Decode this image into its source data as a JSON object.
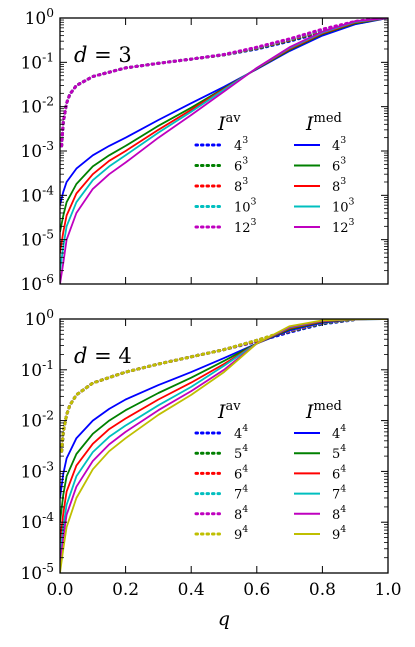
{
  "chart_data": [
    {
      "type": "line",
      "panel_label": "d = 3",
      "xlabel": "",
      "ylabel": "",
      "xlim": [
        0.0,
        1.0
      ],
      "ylim": [
        1e-06,
        1
      ],
      "yscale": "log",
      "xticks": [
        0.0,
        0.2,
        0.4,
        0.6,
        0.8,
        1.0
      ],
      "yticks": [
        "10^-6",
        "10^-5",
        "10^-4",
        "10^-3",
        "10^-2",
        "10^-1",
        "10^0"
      ],
      "grid": false,
      "legend_placement": "center-right",
      "legend_headers": {
        "av": "I^av",
        "med": "I^med"
      },
      "series": [
        {
          "name": "4^3",
          "kind": "av",
          "color": "#0000ff",
          "x": [
            0.005,
            0.01,
            0.02,
            0.03,
            0.05,
            0.1,
            0.2,
            0.3,
            0.4,
            0.5,
            0.6,
            0.7,
            0.8,
            0.9,
            0.95
          ],
          "values": [
            0.0013,
            0.0045,
            0.012,
            0.019,
            0.03,
            0.048,
            0.075,
            0.095,
            0.118,
            0.147,
            0.2,
            0.3,
            0.48,
            0.75,
            0.88
          ]
        },
        {
          "name": "6^3",
          "kind": "av",
          "color": "#008000",
          "x": [
            0.005,
            0.01,
            0.02,
            0.03,
            0.05,
            0.1,
            0.2,
            0.3,
            0.4,
            0.5,
            0.6,
            0.7,
            0.8,
            0.9,
            0.95
          ],
          "values": [
            0.0013,
            0.0045,
            0.012,
            0.019,
            0.03,
            0.048,
            0.075,
            0.095,
            0.118,
            0.148,
            0.205,
            0.31,
            0.5,
            0.78,
            0.9
          ]
        },
        {
          "name": "8^3",
          "kind": "av",
          "color": "#ff0000",
          "x": [
            0.005,
            0.01,
            0.02,
            0.03,
            0.05,
            0.1,
            0.2,
            0.3,
            0.4,
            0.5,
            0.6,
            0.7,
            0.8,
            0.9,
            0.95
          ],
          "values": [
            0.0013,
            0.0045,
            0.012,
            0.019,
            0.03,
            0.048,
            0.075,
            0.095,
            0.118,
            0.149,
            0.21,
            0.32,
            0.52,
            0.8,
            0.92
          ]
        },
        {
          "name": "10^3",
          "kind": "av",
          "color": "#00bfbf",
          "x": [
            0.005,
            0.01,
            0.02,
            0.03,
            0.05,
            0.1,
            0.2,
            0.3,
            0.4,
            0.5,
            0.6,
            0.7,
            0.8,
            0.9,
            0.95
          ],
          "values": [
            0.0013,
            0.0045,
            0.012,
            0.019,
            0.03,
            0.048,
            0.075,
            0.095,
            0.118,
            0.15,
            0.215,
            0.33,
            0.54,
            0.82,
            0.93
          ]
        },
        {
          "name": "12^3",
          "kind": "av",
          "color": "#bf00bf",
          "x": [
            0.005,
            0.01,
            0.02,
            0.03,
            0.05,
            0.1,
            0.2,
            0.3,
            0.4,
            0.5,
            0.6,
            0.7,
            0.8,
            0.9,
            0.95
          ],
          "values": [
            0.0013,
            0.0045,
            0.012,
            0.019,
            0.03,
            0.048,
            0.075,
            0.095,
            0.118,
            0.15,
            0.22,
            0.34,
            0.56,
            0.84,
            0.94
          ]
        },
        {
          "name": "4^3",
          "kind": "med",
          "color": "#0000ff",
          "x": [
            0.0,
            0.01,
            0.02,
            0.05,
            0.1,
            0.15,
            0.2,
            0.3,
            0.4,
            0.5,
            0.6,
            0.7,
            0.8,
            0.9,
            1.0
          ],
          "values": [
            6e-05,
            0.00012,
            0.0002,
            0.0004,
            0.0008,
            0.0013,
            0.002,
            0.005,
            0.012,
            0.028,
            0.07,
            0.18,
            0.4,
            0.72,
            1.0
          ]
        },
        {
          "name": "6^3",
          "kind": "med",
          "color": "#008000",
          "x": [
            0.0,
            0.01,
            0.02,
            0.05,
            0.1,
            0.15,
            0.2,
            0.3,
            0.4,
            0.5,
            0.6,
            0.7,
            0.8,
            0.9,
            1.0
          ],
          "values": [
            1.5e-05,
            3.5e-05,
            7e-05,
            0.00018,
            0.00045,
            0.0008,
            0.0013,
            0.0037,
            0.0095,
            0.026,
            0.072,
            0.19,
            0.43,
            0.76,
            1.0
          ]
        },
        {
          "name": "8^3",
          "kind": "med",
          "color": "#ff0000",
          "x": [
            0.0,
            0.01,
            0.02,
            0.05,
            0.1,
            0.15,
            0.2,
            0.3,
            0.4,
            0.5,
            0.6,
            0.7,
            0.8,
            0.9,
            1.0
          ],
          "values": [
            5e-06,
            1.5e-05,
            3.5e-05,
            0.00011,
            0.0003,
            0.0006,
            0.001,
            0.003,
            0.0085,
            0.025,
            0.073,
            0.2,
            0.45,
            0.79,
            1.0
          ]
        },
        {
          "name": "10^3",
          "kind": "med",
          "color": "#00bfbf",
          "x": [
            0.0,
            0.01,
            0.02,
            0.05,
            0.1,
            0.15,
            0.2,
            0.3,
            0.4,
            0.5,
            0.6,
            0.7,
            0.8,
            0.9,
            1.0
          ],
          "values": [
            2e-06,
            7e-06,
            2e-05,
            7e-05,
            0.00022,
            0.00045,
            0.0008,
            0.0026,
            0.0077,
            0.024,
            0.074,
            0.21,
            0.47,
            0.82,
            1.0
          ]
        },
        {
          "name": "12^3",
          "kind": "med",
          "color": "#bf00bf",
          "x": [
            0.0,
            0.01,
            0.02,
            0.05,
            0.1,
            0.15,
            0.2,
            0.3,
            0.4,
            0.5,
            0.6,
            0.7,
            0.8,
            0.9,
            1.0
          ],
          "values": [
            1e-06,
            3e-06,
            1e-05,
            4e-05,
            0.00014,
            0.0003,
            0.00055,
            0.002,
            0.0065,
            0.022,
            0.075,
            0.22,
            0.49,
            0.85,
            1.0
          ]
        }
      ]
    },
    {
      "type": "line",
      "panel_label": "d = 4",
      "xlabel": "q",
      "ylabel": "",
      "xlim": [
        0.0,
        1.0
      ],
      "ylim": [
        1e-05,
        1
      ],
      "yscale": "log",
      "xticks": [
        0.0,
        0.2,
        0.4,
        0.6,
        0.8,
        1.0
      ],
      "yticks": [
        "10^-5",
        "10^-4",
        "10^-3",
        "10^-2",
        "10^-1",
        "10^0"
      ],
      "grid": false,
      "legend_placement": "center-right",
      "legend_headers": {
        "av": "I^av",
        "med": "I^med"
      },
      "series": [
        {
          "name": "4^4",
          "kind": "av",
          "color": "#0000ff",
          "x": [
            0.005,
            0.01,
            0.02,
            0.03,
            0.05,
            0.1,
            0.2,
            0.3,
            0.4,
            0.5,
            0.6,
            0.7,
            0.8,
            0.9
          ],
          "values": [
            0.0025,
            0.006,
            0.013,
            0.02,
            0.032,
            0.055,
            0.09,
            0.13,
            0.18,
            0.25,
            0.36,
            0.55,
            0.8,
            0.97
          ]
        },
        {
          "name": "5^4",
          "kind": "av",
          "color": "#008000",
          "x": [
            0.005,
            0.01,
            0.02,
            0.03,
            0.05,
            0.1,
            0.2,
            0.3,
            0.4,
            0.5,
            0.6,
            0.7,
            0.8,
            0.9
          ],
          "values": [
            0.0025,
            0.006,
            0.013,
            0.02,
            0.032,
            0.055,
            0.09,
            0.13,
            0.18,
            0.25,
            0.37,
            0.57,
            0.82,
            0.98
          ]
        },
        {
          "name": "6^4",
          "kind": "av",
          "color": "#ff0000",
          "x": [
            0.005,
            0.01,
            0.02,
            0.03,
            0.05,
            0.1,
            0.2,
            0.3,
            0.4,
            0.5,
            0.6,
            0.7,
            0.8,
            0.9
          ],
          "values": [
            0.0025,
            0.006,
            0.013,
            0.02,
            0.032,
            0.055,
            0.09,
            0.13,
            0.18,
            0.25,
            0.37,
            0.58,
            0.84,
            0.98
          ]
        },
        {
          "name": "7^4",
          "kind": "av",
          "color": "#00bfbf",
          "x": [
            0.005,
            0.01,
            0.02,
            0.03,
            0.05,
            0.1,
            0.2,
            0.3,
            0.4,
            0.5,
            0.6,
            0.7,
            0.8,
            0.9
          ],
          "values": [
            0.0025,
            0.006,
            0.013,
            0.02,
            0.032,
            0.055,
            0.09,
            0.13,
            0.18,
            0.25,
            0.38,
            0.59,
            0.85,
            0.98
          ]
        },
        {
          "name": "8^4",
          "kind": "av",
          "color": "#bf00bf",
          "x": [
            0.005,
            0.01,
            0.02,
            0.03,
            0.05,
            0.1,
            0.2,
            0.3,
            0.4,
            0.5,
            0.6,
            0.7,
            0.8,
            0.9
          ],
          "values": [
            0.0025,
            0.006,
            0.013,
            0.02,
            0.032,
            0.055,
            0.09,
            0.13,
            0.18,
            0.25,
            0.38,
            0.6,
            0.86,
            0.99
          ]
        },
        {
          "name": "9^4",
          "kind": "av",
          "color": "#bfbf00",
          "x": [
            0.005,
            0.01,
            0.02,
            0.03,
            0.05,
            0.1,
            0.2,
            0.3,
            0.4,
            0.5,
            0.6,
            0.7,
            0.8,
            0.9
          ],
          "values": [
            0.0025,
            0.006,
            0.013,
            0.02,
            0.032,
            0.055,
            0.09,
            0.13,
            0.18,
            0.25,
            0.38,
            0.61,
            0.87,
            0.99
          ]
        },
        {
          "name": "4^4",
          "kind": "med",
          "color": "#0000ff",
          "x": [
            0.0,
            0.01,
            0.02,
            0.05,
            0.1,
            0.15,
            0.2,
            0.3,
            0.4,
            0.5,
            0.6,
            0.7,
            0.8,
            0.9,
            1.0
          ],
          "values": [
            0.0003,
            0.0009,
            0.0018,
            0.0045,
            0.01,
            0.017,
            0.026,
            0.05,
            0.09,
            0.17,
            0.33,
            0.6,
            0.85,
            0.98,
            1.0
          ]
        },
        {
          "name": "5^4",
          "kind": "med",
          "color": "#008000",
          "x": [
            0.0,
            0.01,
            0.02,
            0.05,
            0.1,
            0.15,
            0.2,
            0.3,
            0.4,
            0.5,
            0.6,
            0.7,
            0.8,
            0.9,
            1.0
          ],
          "values": [
            0.0001,
            0.00035,
            0.0008,
            0.0022,
            0.0055,
            0.01,
            0.016,
            0.035,
            0.07,
            0.15,
            0.33,
            0.63,
            0.88,
            0.98,
            1.0
          ]
        },
        {
          "name": "6^4",
          "kind": "med",
          "color": "#ff0000",
          "x": [
            0.0,
            0.01,
            0.02,
            0.05,
            0.1,
            0.15,
            0.2,
            0.3,
            0.4,
            0.5,
            0.6,
            0.7,
            0.8,
            0.9,
            1.0
          ],
          "values": [
            4e-05,
            0.00015,
            0.0004,
            0.0013,
            0.0035,
            0.0068,
            0.011,
            0.026,
            0.056,
            0.13,
            0.33,
            0.66,
            0.9,
            0.99,
            1.0
          ]
        },
        {
          "name": "7^4",
          "kind": "med",
          "color": "#00bfbf",
          "x": [
            0.0,
            0.01,
            0.02,
            0.05,
            0.1,
            0.15,
            0.2,
            0.3,
            0.4,
            0.5,
            0.6,
            0.7,
            0.8,
            0.9,
            1.0
          ],
          "values": [
            2e-05,
            8e-05,
            0.00022,
            0.0008,
            0.0024,
            0.0048,
            0.008,
            0.02,
            0.046,
            0.12,
            0.33,
            0.68,
            0.92,
            0.99,
            1.0
          ]
        },
        {
          "name": "8^4",
          "kind": "med",
          "color": "#bf00bf",
          "x": [
            0.0,
            0.01,
            0.02,
            0.05,
            0.1,
            0.15,
            0.2,
            0.3,
            0.4,
            0.5,
            0.6,
            0.7,
            0.8,
            0.9,
            1.0
          ],
          "values": [
            1.5e-05,
            5e-05,
            0.00014,
            0.0005,
            0.0016,
            0.0034,
            0.006,
            0.016,
            0.038,
            0.1,
            0.33,
            0.7,
            0.93,
            0.99,
            1.0
          ]
        },
        {
          "name": "9^4",
          "kind": "med",
          "color": "#bfbf00",
          "x": [
            0.0,
            0.01,
            0.02,
            0.05,
            0.1,
            0.15,
            0.2,
            0.3,
            0.4,
            0.5,
            0.6,
            0.7,
            0.8,
            0.9,
            1.0
          ],
          "values": [
            1e-05,
            3e-05,
            8e-05,
            0.0003,
            0.0011,
            0.0025,
            0.0045,
            0.013,
            0.032,
            0.09,
            0.33,
            0.72,
            0.94,
            0.99,
            1.0
          ]
        }
      ]
    }
  ]
}
